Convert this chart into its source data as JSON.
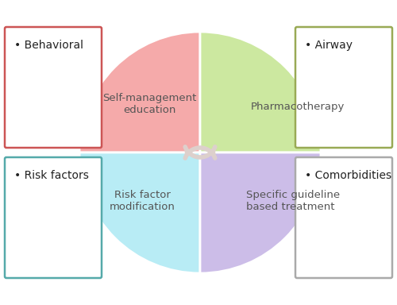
{
  "background_color": "#ffffff",
  "quadrant_colors": {
    "top_left": "#f5aaaa",
    "top_right": "#cce8a0",
    "bottom_left": "#b8ecf5",
    "bottom_right": "#ccbde8"
  },
  "quadrant_labels": {
    "top_left": "Self-management\neducation",
    "top_right": "Pharmacotherapy",
    "bottom_left": "Risk factor\nmodification",
    "bottom_right": "Specific guideline\nbased treatment"
  },
  "box_labels": {
    "top_left": "• Behavioral",
    "top_right": "• Airway",
    "bottom_left": "• Risk factors",
    "bottom_right": "• Comorbidities"
  },
  "box_edge_colors": {
    "top_left": "#cc5555",
    "top_right": "#99aa55",
    "bottom_left": "#55aaaa",
    "bottom_right": "#aaaaaa"
  },
  "arrow_color": "#ddd0cc",
  "label_color": "#555555",
  "box_label_color": "#222222"
}
